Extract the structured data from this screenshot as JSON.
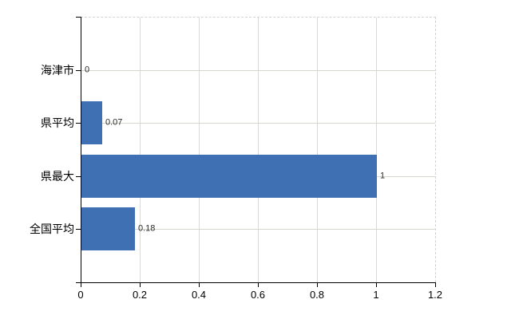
{
  "chart_data": {
    "type": "bar",
    "orientation": "horizontal",
    "title": "",
    "xlabel": "",
    "ylabel": "",
    "categories": [
      "海津市",
      "県平均",
      "県最大",
      "全国平均"
    ],
    "values": [
      0,
      0.07,
      1,
      0.18
    ],
    "value_labels": [
      "0",
      "0.07",
      "1",
      "0.18"
    ],
    "xlim": [
      0,
      1.2
    ],
    "x_tick_values": [
      0,
      0.2,
      0.4,
      0.6,
      0.8,
      1,
      1.2
    ],
    "x_tick_labels": [
      "0",
      "0.2",
      "0.4",
      "0.6",
      "0.8",
      "1",
      "1.2"
    ],
    "grid": "on",
    "legend": "none",
    "colors": {
      "bar": "#4070b4",
      "axis": "#000000",
      "vertical_gridline": "#d9d9d9",
      "horizontal_gridline": "#d3d8cd",
      "dashed_border": "#d8d0d3",
      "background": "#ffffff",
      "text": "#000000"
    }
  }
}
